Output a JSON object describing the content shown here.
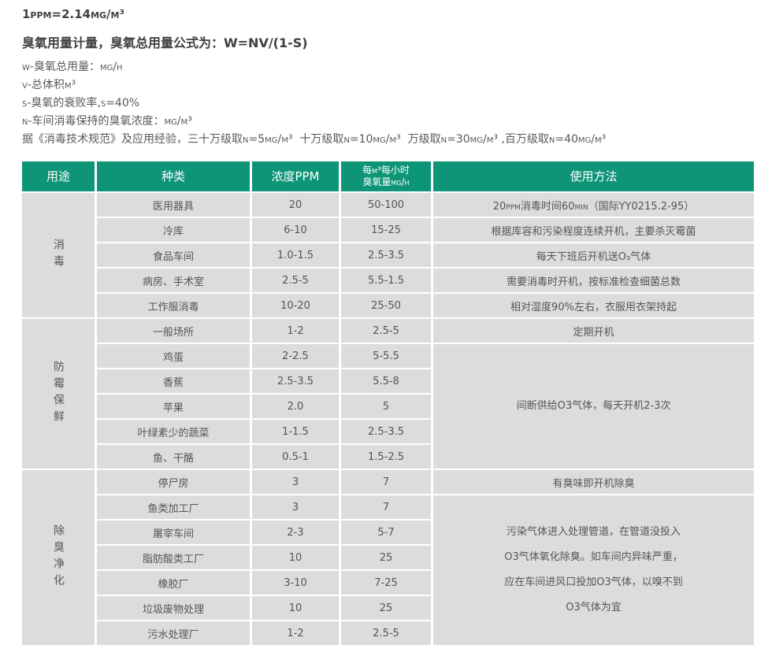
{
  "colors": {
    "header_bg": "#0e9577",
    "header_text": "#ffffff",
    "cell_bg": "#dcdcdc",
    "cell_text": "#555555",
    "intro_text": "#595959",
    "title_text": "#404040"
  },
  "intro": {
    "conversion": "1ppm=2.14mg/m³",
    "formula": "臭氧用量计量，臭氧总用量公式为：W=NV/(1-S)",
    "definitions": [
      "w-臭氧总用量：mg/h",
      "v-总体积m³",
      "s-臭氧的衰败率,s=40%",
      "n-车间消毒保持的臭氧浓度：mg/m³",
      "据《消毒技术规范》及应用经验，三十万级取n=5mg/m³  十万级取n=10mg/m³  万级取n=30mg/m³ ,百万级取n=40mg/m³"
    ]
  },
  "table": {
    "headers": [
      "用途",
      "种类",
      "浓度PPM",
      "每m³每小时\n臭氧量mg/h",
      "使用方法"
    ],
    "groups": [
      {
        "category": "消毒",
        "rows": [
          {
            "kind": "医用器具",
            "ppm": "20",
            "ozone": "50-100",
            "usage": "20ppm消毒时间60min（国际YY0215.2-95）"
          },
          {
            "kind": "冷库",
            "ppm": "6-10",
            "ozone": "15-25",
            "usage": "根据库容和污染程度连续开机，主要杀灭霉菌"
          },
          {
            "kind": "食品车间",
            "ppm": "1.0-1.5",
            "ozone": "2.5-3.5",
            "usage": "每天下班后开机送O₃气体"
          },
          {
            "kind": "病房、手术室",
            "ppm": "2.5-5",
            "ozone": "5.5-1.5",
            "usage": "需要消毒时开机，按标准检查细菌总数"
          },
          {
            "kind": "工作服消毒",
            "ppm": "10-20",
            "ozone": "25-50",
            "usage": "相对湿度90%左右，衣服用衣架持起"
          }
        ]
      },
      {
        "category": "防霉保鲜",
        "rows": [
          {
            "kind": "一般场所",
            "ppm": "1-2",
            "ozone": "2.5-5",
            "usage": "定期开机"
          },
          {
            "kind": "鸡蛋",
            "ppm": "2-2.5",
            "ozone": "5-5.5"
          },
          {
            "kind": "香蕉",
            "ppm": "2.5-3.5",
            "ozone": "5.5-8"
          },
          {
            "kind": "苹果",
            "ppm": "2.0",
            "ozone": "5"
          },
          {
            "kind": "叶绿素少的蔬菜",
            "ppm": "1-1.5",
            "ozone": "2.5-3.5"
          },
          {
            "kind": "鱼、干酪",
            "ppm": "0.5-1",
            "ozone": "1.5-2.5"
          }
        ],
        "merged_usage": {
          "start_row": 1,
          "lines": [
            "间断供给O3气体，每天开机2-3次"
          ]
        }
      },
      {
        "category": "除臭净化",
        "rows": [
          {
            "kind": "停尸房",
            "ppm": "3",
            "ozone": "7",
            "usage": "有臭味即开机除臭"
          },
          {
            "kind": "鱼类加工厂",
            "ppm": "3",
            "ozone": "7"
          },
          {
            "kind": "屠宰车间",
            "ppm": "2-3",
            "ozone": "5-7"
          },
          {
            "kind": "脂肪酸类工厂",
            "ppm": "10",
            "ozone": "25"
          },
          {
            "kind": "橡胶厂",
            "ppm": "3-10",
            "ozone": "7-25"
          },
          {
            "kind": "垃圾废物处理",
            "ppm": "10",
            "ozone": "25"
          },
          {
            "kind": "污水处理厂",
            "ppm": "1-2",
            "ozone": "2.5-5"
          }
        ],
        "merged_usage": {
          "start_row": 1,
          "lines": [
            "污染气体进入处理管道，在管道没投入",
            "O3气体氧化除臭。如车间内异味严重，",
            "应在车间进风口投加O3气体，以嗅不到",
            "O3气体为宜"
          ]
        }
      }
    ]
  }
}
